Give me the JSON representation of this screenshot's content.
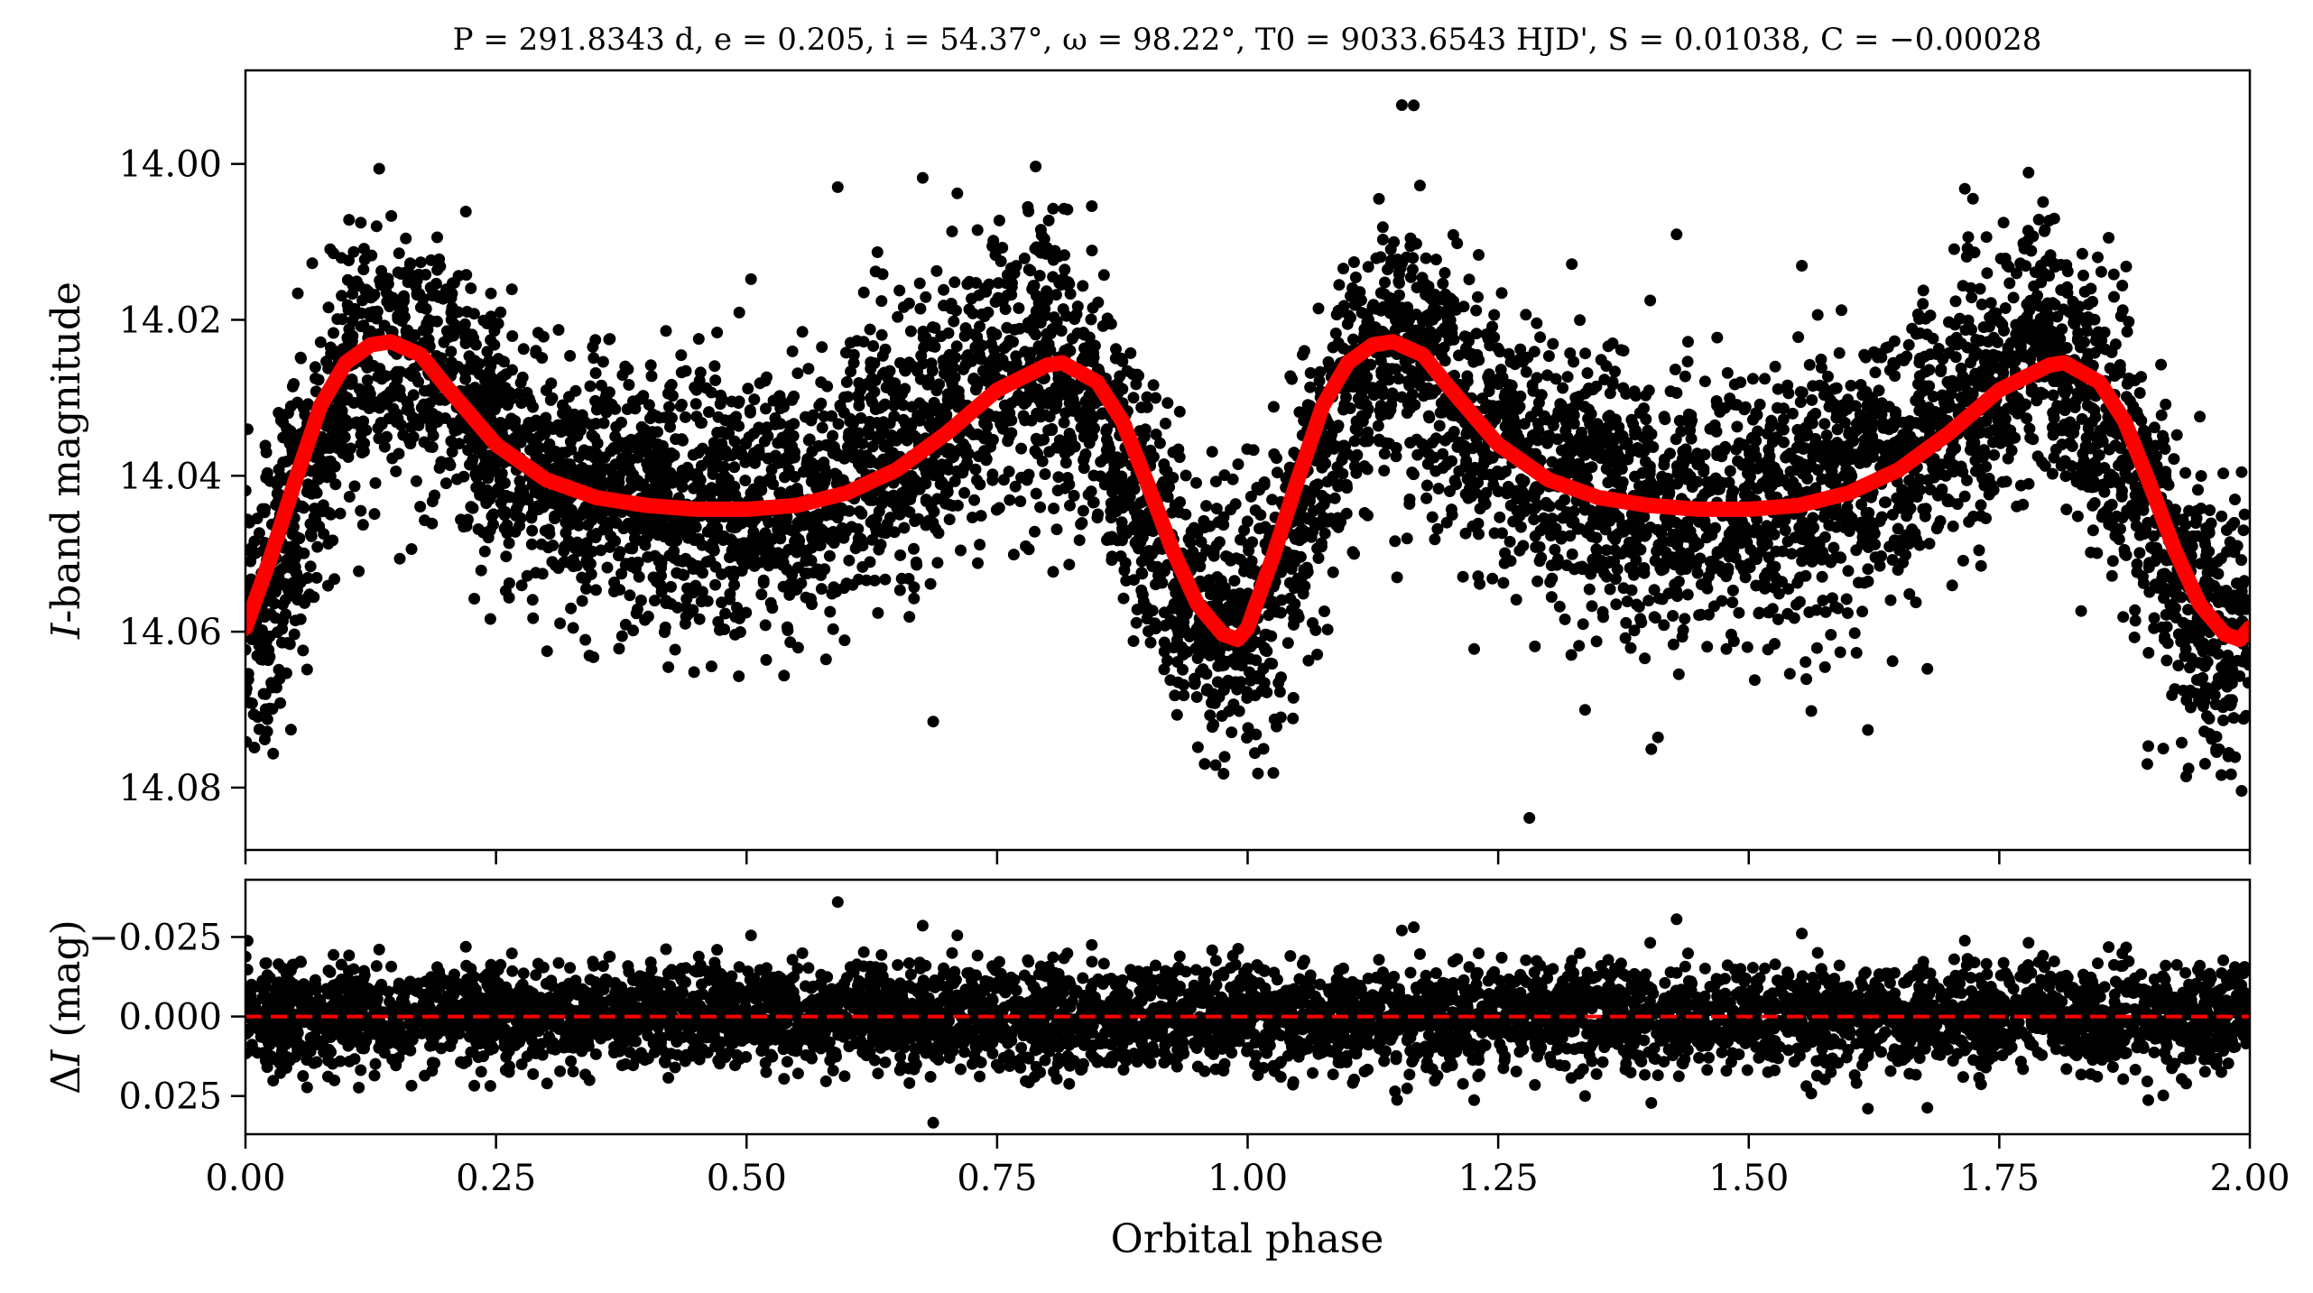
{
  "chart_data": [
    {
      "type": "scatter",
      "panel": "top",
      "title": "P = 291.8343 d, e = 0.205, i = 54.37°, ω = 98.22°, T0 = 9033.6543 HJD', S = 0.01038, C = −0.00028",
      "ylabel_italic": "I",
      "ylabel_rest": "-band magnitude",
      "xlim": [
        0.0,
        2.0
      ],
      "ylim": [
        14.088,
        13.988
      ],
      "y_inverted": true,
      "yticks": [
        14.0,
        14.02,
        14.04,
        14.06,
        14.08
      ],
      "ytick_labels": [
        "14.00",
        "14.02",
        "14.04",
        "14.06",
        "14.08"
      ],
      "xticks": [
        0.0,
        0.25,
        0.5,
        0.75,
        1.0,
        1.25,
        1.5,
        1.75,
        2.0
      ],
      "grid": false,
      "series": [
        {
          "kind": "points",
          "color": "#000000",
          "x": [
            0.0,
            0.05,
            0.1,
            0.15,
            0.2,
            0.25,
            0.3,
            0.35,
            0.4,
            0.45,
            0.5,
            0.55,
            0.6,
            0.65,
            0.7,
            0.75,
            0.8,
            0.85,
            0.9,
            0.95,
            1.0
          ],
          "y": [
            14.062,
            14.045,
            14.028,
            14.023,
            14.028,
            14.036,
            14.04,
            14.042,
            14.044,
            14.044,
            14.044,
            14.043,
            14.041,
            14.037,
            14.032,
            14.027,
            14.025,
            14.03,
            14.045,
            14.058,
            14.062
          ],
          "scatter_sd": 0.008
        },
        {
          "kind": "model",
          "color": "#ff0000",
          "x": [
            0.0,
            0.025,
            0.05,
            0.075,
            0.1,
            0.125,
            0.145,
            0.175,
            0.2,
            0.25,
            0.3,
            0.35,
            0.4,
            0.45,
            0.5,
            0.55,
            0.6,
            0.65,
            0.7,
            0.75,
            0.8,
            0.815,
            0.85,
            0.875,
            0.9,
            0.925,
            0.95,
            0.975,
            0.99,
            1.0
          ],
          "y": [
            14.0595,
            14.0505,
            14.0405,
            14.031,
            14.0255,
            14.0232,
            14.0228,
            14.0245,
            14.0285,
            14.036,
            14.0405,
            14.0428,
            14.0438,
            14.0443,
            14.0443,
            14.0438,
            14.0422,
            14.0392,
            14.0345,
            14.029,
            14.0258,
            14.0255,
            14.028,
            14.033,
            14.041,
            14.0495,
            14.0565,
            14.0603,
            14.061,
            14.0595
          ]
        }
      ]
    },
    {
      "type": "scatter",
      "panel": "bottom",
      "ylabel_delta": "Δ",
      "ylabel_italic": "I",
      "ylabel_rest": " (mag)",
      "xlabel": "Orbital phase",
      "xlim": [
        0.0,
        2.0
      ],
      "ylim": [
        0.037,
        -0.043
      ],
      "y_inverted": true,
      "yticks": [
        -0.025,
        0.0,
        0.025
      ],
      "ytick_labels": [
        "−0.025",
        "0.000",
        "0.025"
      ],
      "xticks": [
        0.0,
        0.25,
        0.5,
        0.75,
        1.0,
        1.25,
        1.5,
        1.75,
        2.0
      ],
      "xtick_labels": [
        "0.00",
        "0.25",
        "0.50",
        "0.75",
        "1.00",
        "1.25",
        "1.50",
        "1.75",
        "2.00"
      ],
      "grid": false,
      "series": [
        {
          "kind": "points",
          "color": "#000000",
          "mean": 0.0,
          "scatter_sd": 0.0075
        },
        {
          "kind": "zero-line",
          "color": "#ff0000",
          "y": 0.0,
          "dashed": true
        }
      ]
    }
  ]
}
